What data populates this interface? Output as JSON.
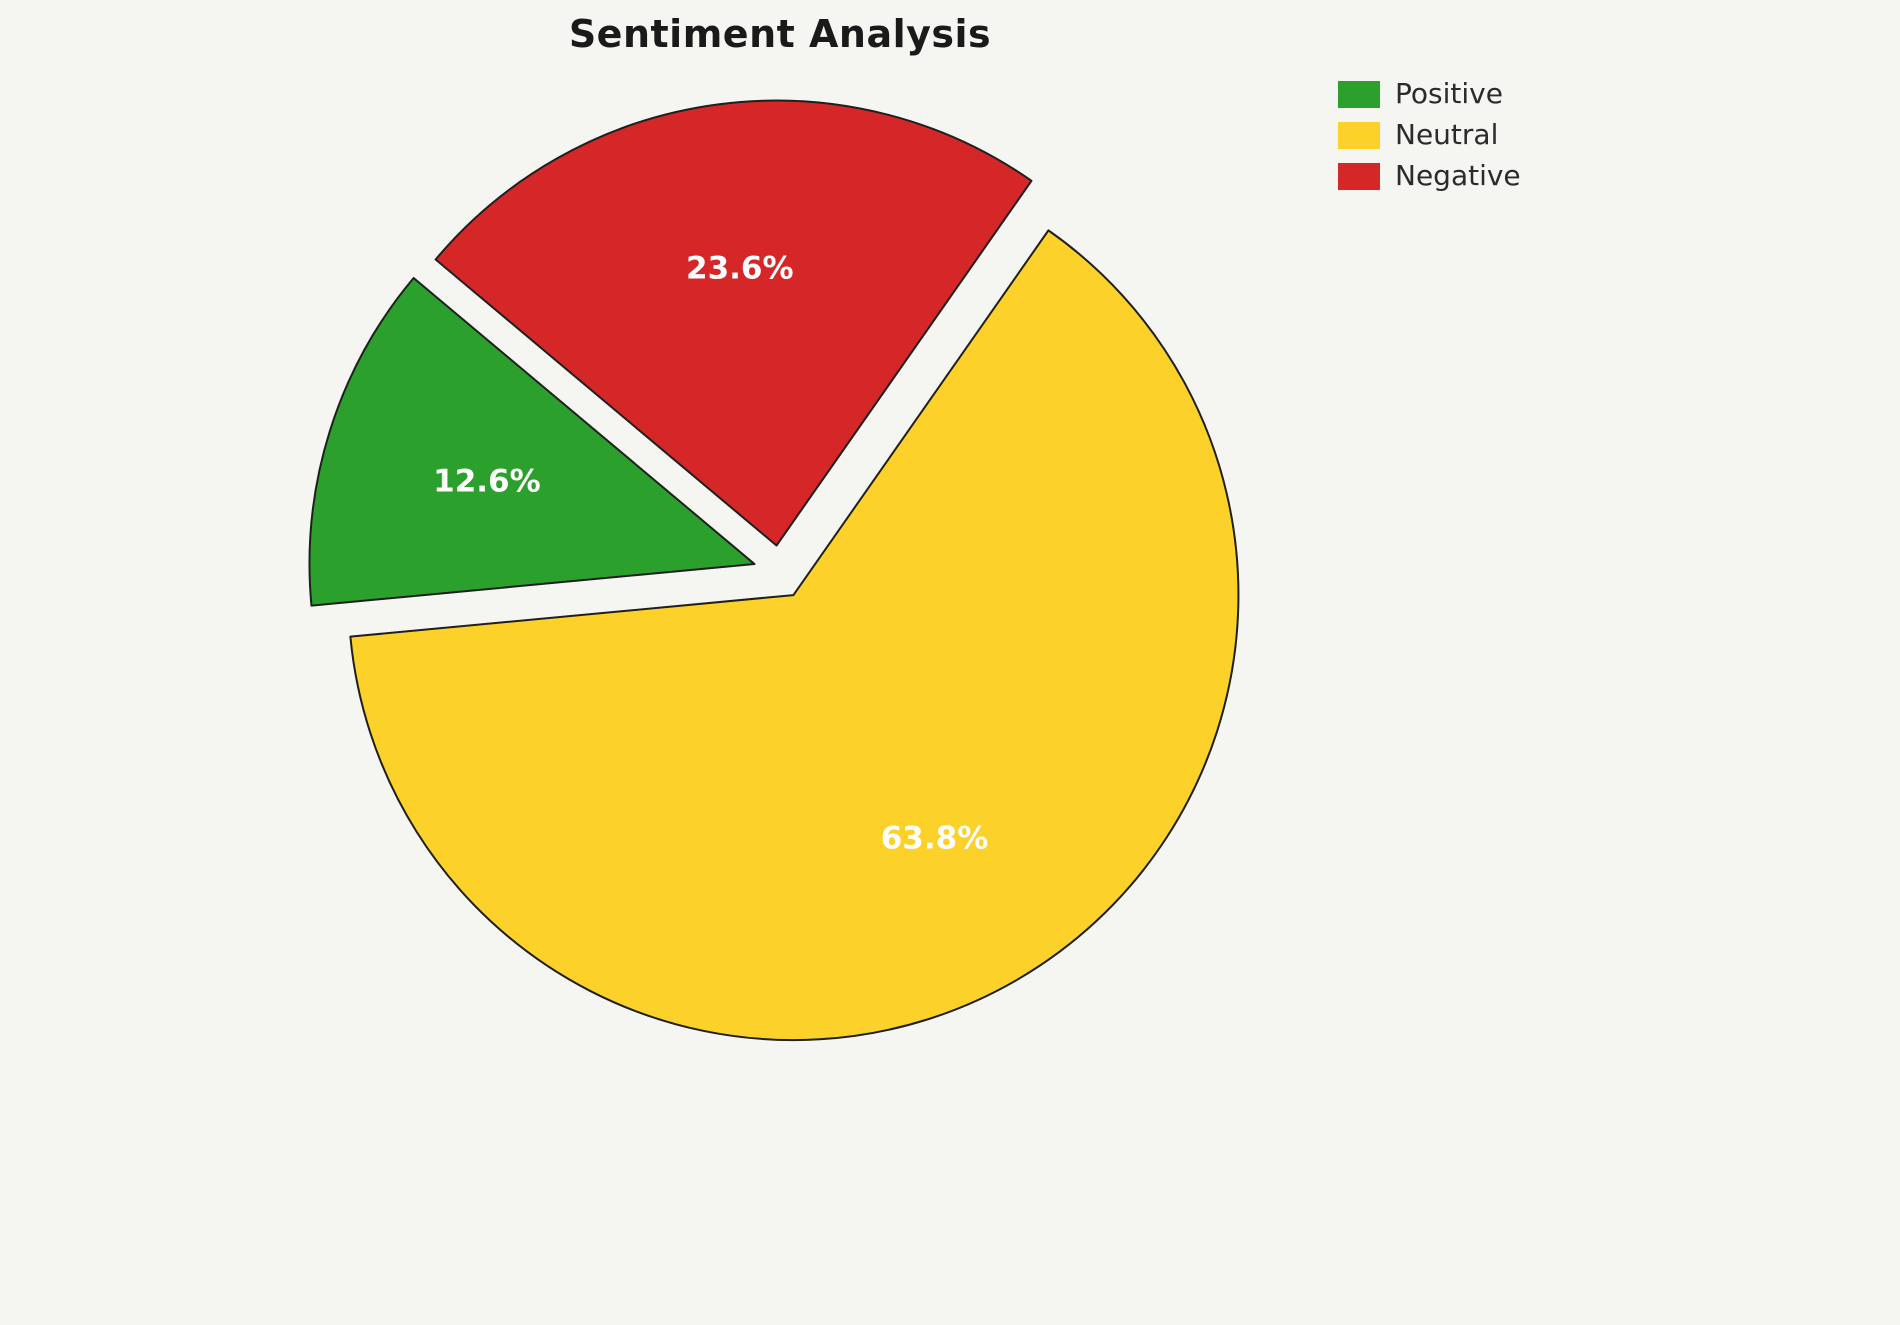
{
  "chart_data": {
    "type": "pie",
    "title": "Sentiment Analysis",
    "labels": [
      "Positive",
      "Neutral",
      "Negative"
    ],
    "values": [
      12.6,
      63.8,
      23.6
    ],
    "value_labels": [
      "12.6%",
      "63.8%",
      "23.6%"
    ],
    "colors": [
      "#2ca02c",
      "#fcd12a",
      "#d62728"
    ],
    "start_angle": 140,
    "counterclockwise": true,
    "explode": 0.06,
    "background": "#f5f5f2",
    "label_color": "#ffffff",
    "wedge_edge_color": "#1f1f1f",
    "legend_position": "upper right",
    "legend": {
      "items": [
        {
          "label": "Positive",
          "color": "#2ca02c"
        },
        {
          "label": "Neutral",
          "color": "#fcd12a"
        },
        {
          "label": "Negative",
          "color": "#d62728"
        }
      ]
    }
  }
}
